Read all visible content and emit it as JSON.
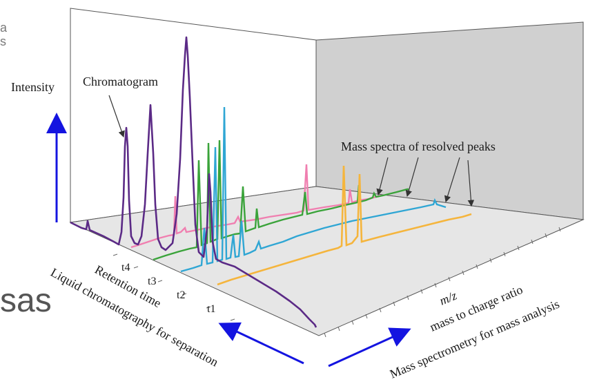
{
  "background_fragments": {
    "top_line1": "a",
    "top_line2": "s",
    "big_text": "sas"
  },
  "labels": {
    "intensity": "Intensity",
    "chromatogram": "Chromatogram",
    "mass_spectra": "Mass spectra of resolved peaks",
    "retention_time": "Retention time",
    "lc_separation": "Liquid chromatography for separation",
    "mz": "m/z",
    "mass_to_charge": "mass to charge ratio",
    "ms_analysis": "Mass spectrometry for mass analysis"
  },
  "time_ticks": [
    "t4",
    "t3",
    "t2",
    "t1"
  ],
  "colors": {
    "chromatogram": "#5b2a86",
    "pink": "#f07fb0",
    "green": "#3aa33a",
    "blue": "#2fa6d4",
    "orange": "#f5b53d",
    "axis_arrow": "#1414e0",
    "wall": "#d0d0d0",
    "floor": "#e6e6e6"
  },
  "spectra": [
    {
      "name": "pink",
      "time": "t4"
    },
    {
      "name": "green",
      "time": "t3"
    },
    {
      "name": "blue",
      "time": "t2"
    },
    {
      "name": "orange",
      "time": "t1"
    }
  ]
}
